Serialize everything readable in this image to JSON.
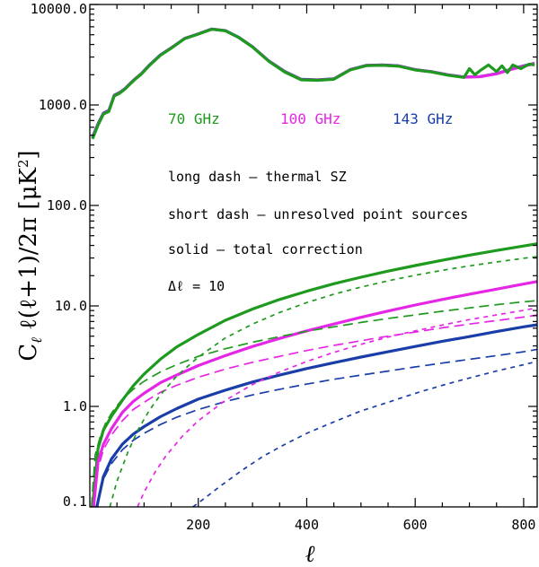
{
  "chart_data": {
    "type": "line",
    "xlabel": "ℓ",
    "ylabel": "C_ℓ ℓ(ℓ+1)/2π [μK²]",
    "ylabel_parts": {
      "c": "C",
      "sub": "ℓ",
      "rest": " ℓ(ℓ+1)/2π [μK",
      "sup": "2",
      "close": "]"
    },
    "xlim": [
      0,
      825
    ],
    "ylim": [
      0.1,
      10000
    ],
    "yscale": "log",
    "x_ticks": [
      200,
      400,
      600,
      800
    ],
    "x_tick_labels": [
      "200",
      "400",
      "600",
      "800"
    ],
    "y_ticks": [
      0.1,
      1,
      10,
      100,
      1000,
      10000
    ],
    "y_tick_labels": [
      "0.1",
      "1.0",
      "10.0",
      "100.0",
      "1000.0",
      "10000.0"
    ],
    "grid": false,
    "legend": [
      {
        "label": "70 GHz",
        "color": "#1e9a1e"
      },
      {
        "label": "100 GHz",
        "color": "#e626e6"
      },
      {
        "label": "143 GHz",
        "color": "#1a3ea8"
      }
    ],
    "annotations": [
      "long dash – thermal SZ",
      "short dash – unresolved point sources",
      "solid – total correction"
    ],
    "delta_l_label": "Δℓ = 10",
    "series": [
      {
        "color": "#1a3ea8",
        "style": "solid",
        "width": 3.2,
        "x": [
          5,
          15,
          25,
          35,
          45,
          55,
          65,
          75,
          85,
          95,
          110,
          130,
          150,
          175,
          200,
          225,
          250,
          275,
          300,
          330,
          360,
          390,
          420,
          450,
          480,
          510,
          540,
          570,
          600,
          630,
          660,
          690,
          720,
          750,
          780,
          800,
          820
        ],
        "y": [
          480,
          650,
          830,
          880,
          1250,
          1330,
          1460,
          1650,
          1850,
          2050,
          2500,
          3150,
          3700,
          4600,
          5100,
          5700,
          5500,
          4700,
          3800,
          2750,
          2150,
          1800,
          1780,
          1820,
          2250,
          2480,
          2500,
          2450,
          2250,
          2150,
          2000,
          1900,
          1920,
          2050,
          2300,
          2450,
          2600
        ]
      },
      {
        "color": "#e626e6",
        "style": "solid",
        "width": 3.2,
        "x": [
          5,
          15,
          25,
          35,
          45,
          55,
          65,
          75,
          85,
          95,
          110,
          130,
          150,
          175,
          200,
          225,
          250,
          275,
          300,
          330,
          360,
          390,
          420,
          450,
          480,
          510,
          540,
          570,
          600,
          630,
          660,
          690,
          720,
          750,
          780,
          800,
          820
        ],
        "y": [
          470,
          640,
          820,
          870,
          1240,
          1320,
          1450,
          1640,
          1840,
          2040,
          2480,
          3130,
          3680,
          4580,
          5080,
          5680,
          5480,
          4680,
          3780,
          2730,
          2130,
          1790,
          1770,
          1810,
          2240,
          2470,
          2490,
          2440,
          2240,
          2140,
          1990,
          1890,
          1910,
          2040,
          2280,
          2430,
          2580
        ]
      },
      {
        "color": "#1e9a1e",
        "style": "solid",
        "width": 3.2,
        "x": [
          5,
          15,
          25,
          35,
          45,
          55,
          65,
          75,
          85,
          95,
          110,
          130,
          150,
          175,
          200,
          225,
          250,
          275,
          300,
          330,
          360,
          390,
          420,
          450,
          480,
          510,
          540,
          570,
          600,
          630,
          660,
          690,
          700,
          710,
          720,
          735,
          750,
          760,
          770,
          780,
          795,
          810,
          820
        ],
        "y": [
          460,
          630,
          810,
          860,
          1230,
          1310,
          1440,
          1630,
          1830,
          2030,
          2470,
          3120,
          3670,
          4570,
          5070,
          5670,
          5470,
          4670,
          3770,
          2720,
          2120,
          1780,
          1760,
          1800,
          2230,
          2460,
          2480,
          2430,
          2230,
          2130,
          1980,
          1880,
          2300,
          2000,
          2200,
          2500,
          2150,
          2450,
          2100,
          2500,
          2300,
          2550,
          2500
        ]
      },
      {
        "color": "#1e9a1e",
        "style": "solid",
        "width": 3.2,
        "x": [
          5,
          15,
          25,
          40,
          60,
          80,
          100,
          130,
          160,
          200,
          250,
          300,
          350,
          400,
          450,
          500,
          550,
          600,
          650,
          700,
          750,
          800,
          825
        ],
        "y": [
          0.1,
          0.38,
          0.58,
          0.8,
          1.15,
          1.6,
          2.1,
          2.95,
          3.9,
          5.2,
          7.2,
          9.3,
          11.6,
          14.0,
          16.6,
          19.3,
          22.2,
          25.2,
          28.5,
          32.0,
          35.6,
          39.5,
          41.6
        ]
      },
      {
        "color": "#e626e6",
        "style": "solid",
        "width": 3.2,
        "x": [
          7,
          15,
          25,
          40,
          60,
          80,
          100,
          130,
          160,
          200,
          250,
          300,
          350,
          400,
          450,
          500,
          550,
          600,
          650,
          700,
          750,
          800,
          825
        ],
        "y": [
          0.1,
          0.28,
          0.42,
          0.6,
          0.87,
          1.12,
          1.35,
          1.72,
          2.05,
          2.55,
          3.2,
          3.95,
          4.75,
          5.65,
          6.6,
          7.7,
          8.9,
          10.2,
          11.6,
          13.1,
          14.7,
          16.5,
          17.5
        ]
      },
      {
        "color": "#1a3ea8",
        "style": "solid",
        "width": 3.2,
        "x": [
          13,
          25,
          40,
          60,
          80,
          100,
          130,
          160,
          200,
          250,
          300,
          350,
          400,
          450,
          500,
          550,
          600,
          650,
          700,
          750,
          800,
          825
        ],
        "y": [
          0.1,
          0.2,
          0.3,
          0.42,
          0.53,
          0.63,
          0.79,
          0.95,
          1.18,
          1.45,
          1.75,
          2.05,
          2.38,
          2.72,
          3.1,
          3.5,
          3.95,
          4.45,
          4.95,
          5.55,
          6.2,
          6.5
        ]
      },
      {
        "color": "#1e9a1e",
        "style": "dash",
        "width": 1.7,
        "x": [
          3,
          10,
          20,
          30,
          45,
          60,
          80,
          100,
          130,
          160,
          200,
          250,
          300,
          350,
          400,
          450,
          500,
          550,
          600,
          650,
          700,
          750,
          800,
          825
        ],
        "y": [
          0.1,
          0.33,
          0.52,
          0.7,
          0.94,
          1.18,
          1.48,
          1.78,
          2.2,
          2.6,
          3.15,
          3.75,
          4.35,
          4.95,
          5.6,
          6.2,
          6.85,
          7.5,
          8.15,
          8.85,
          9.55,
          10.3,
          11.0,
          11.3
        ]
      },
      {
        "color": "#e626e6",
        "style": "dash",
        "width": 1.7,
        "x": [
          7,
          15,
          25,
          40,
          60,
          80,
          100,
          130,
          160,
          200,
          250,
          300,
          350,
          400,
          450,
          500,
          550,
          600,
          650,
          700,
          750,
          800,
          825
        ],
        "y": [
          0.1,
          0.24,
          0.37,
          0.52,
          0.72,
          0.93,
          1.1,
          1.38,
          1.62,
          1.95,
          2.35,
          2.75,
          3.15,
          3.6,
          4.05,
          4.5,
          5.0,
          5.5,
          6.05,
          6.6,
          7.15,
          7.75,
          8.1
        ]
      },
      {
        "color": "#1a3ea8",
        "style": "dash",
        "width": 1.7,
        "x": [
          12,
          25,
          40,
          60,
          80,
          100,
          130,
          160,
          200,
          250,
          300,
          350,
          400,
          450,
          500,
          550,
          600,
          650,
          700,
          750,
          800,
          825
        ],
        "y": [
          0.1,
          0.19,
          0.27,
          0.37,
          0.46,
          0.54,
          0.66,
          0.78,
          0.93,
          1.12,
          1.3,
          1.48,
          1.67,
          1.86,
          2.05,
          2.25,
          2.47,
          2.7,
          2.94,
          3.2,
          3.5,
          3.7
        ]
      },
      {
        "color": "#1e9a1e",
        "style": "shortdash",
        "width": 1.7,
        "x": [
          37,
          50,
          70,
          90,
          110,
          130,
          160,
          200,
          250,
          300,
          350,
          400,
          450,
          500,
          550,
          600,
          650,
          700,
          750,
          800,
          825
        ],
        "y": [
          0.1,
          0.18,
          0.35,
          0.6,
          0.92,
          1.3,
          2.0,
          3.1,
          4.8,
          6.6,
          8.6,
          10.8,
          13.1,
          15.4,
          17.8,
          20.2,
          22.6,
          25.0,
          27.4,
          29.8,
          31.0
        ]
      },
      {
        "color": "#e626e6",
        "style": "shortdash",
        "width": 1.7,
        "x": [
          88,
          100,
          120,
          140,
          170,
          200,
          250,
          300,
          350,
          400,
          450,
          500,
          550,
          600,
          650,
          700,
          750,
          800,
          825
        ],
        "y": [
          0.1,
          0.14,
          0.22,
          0.32,
          0.5,
          0.72,
          1.15,
          1.65,
          2.2,
          2.8,
          3.45,
          4.15,
          4.9,
          5.65,
          6.45,
          7.3,
          8.15,
          9.05,
          9.55
        ]
      },
      {
        "color": "#1a3ea8",
        "style": "shortdash",
        "width": 1.7,
        "x": [
          190,
          210,
          240,
          280,
          320,
          360,
          400,
          450,
          500,
          550,
          600,
          650,
          700,
          750,
          800,
          825
        ],
        "y": [
          0.1,
          0.12,
          0.16,
          0.23,
          0.32,
          0.42,
          0.54,
          0.7,
          0.9,
          1.1,
          1.35,
          1.62,
          1.92,
          2.25,
          2.6,
          2.8
        ]
      }
    ]
  }
}
